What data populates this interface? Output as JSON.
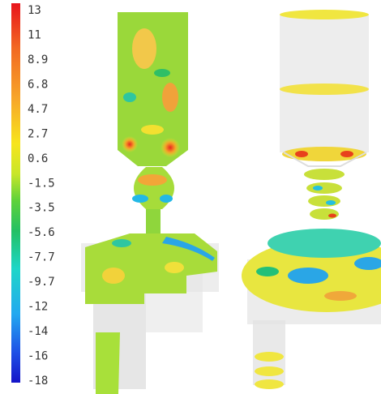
{
  "colorbar": {
    "labels": [
      "13",
      "11",
      "8.9",
      "6.8",
      "4.7",
      "2.7",
      "0.6",
      "-1.5",
      "-3.5",
      "-5.6",
      "-7.7",
      "-9.7",
      "-12",
      "-14",
      "-16",
      "-18"
    ]
  }
}
